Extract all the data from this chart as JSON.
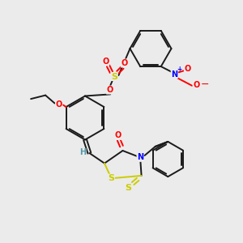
{
  "bg_color": "#ebebeb",
  "bond_color": "#1a1a1a",
  "atom_colors": {
    "O": "#ff0000",
    "S": "#cccc00",
    "N": "#0000ff",
    "H": "#5599aa",
    "C": "#1a1a1a"
  },
  "lw": 1.4,
  "fs": 7.0
}
